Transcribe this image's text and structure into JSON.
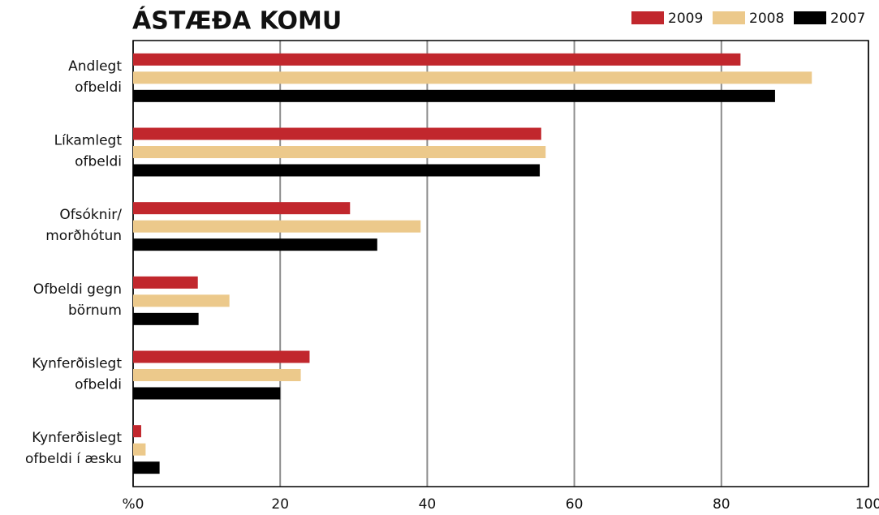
{
  "chart_data": {
    "type": "bar",
    "orientation": "horizontal",
    "title": "ÁSTÆÐA KOMU",
    "categories": [
      [
        "Andlegt",
        "ofbeldi"
      ],
      [
        "Líkamlegt",
        "ofbeldi"
      ],
      [
        "Ofsóknir/",
        "morðhótun"
      ],
      [
        "Ofbeldi gegn",
        "börnum"
      ],
      [
        "Kynferðislegt",
        "ofbeldi"
      ],
      [
        "Kynferðislegt",
        "ofbeldi í æsku"
      ]
    ],
    "series": [
      {
        "name": "2009",
        "color": "#c1272d",
        "values": [
          82.6,
          55.5,
          29.5,
          8.8,
          24.0,
          1.1
        ]
      },
      {
        "name": "2008",
        "color": "#ecc98b",
        "values": [
          92.3,
          56.1,
          39.1,
          13.1,
          22.8,
          1.7
        ]
      },
      {
        "name": "2007",
        "color": "#000000",
        "values": [
          87.3,
          55.3,
          33.2,
          8.9,
          20.0,
          3.6
        ]
      }
    ],
    "xlim": [
      0,
      100
    ],
    "xticks": [
      {
        "value": 0,
        "label": "%0"
      },
      20,
      40,
      60,
      80,
      100
    ],
    "grid": true,
    "legend": "top-right"
  }
}
